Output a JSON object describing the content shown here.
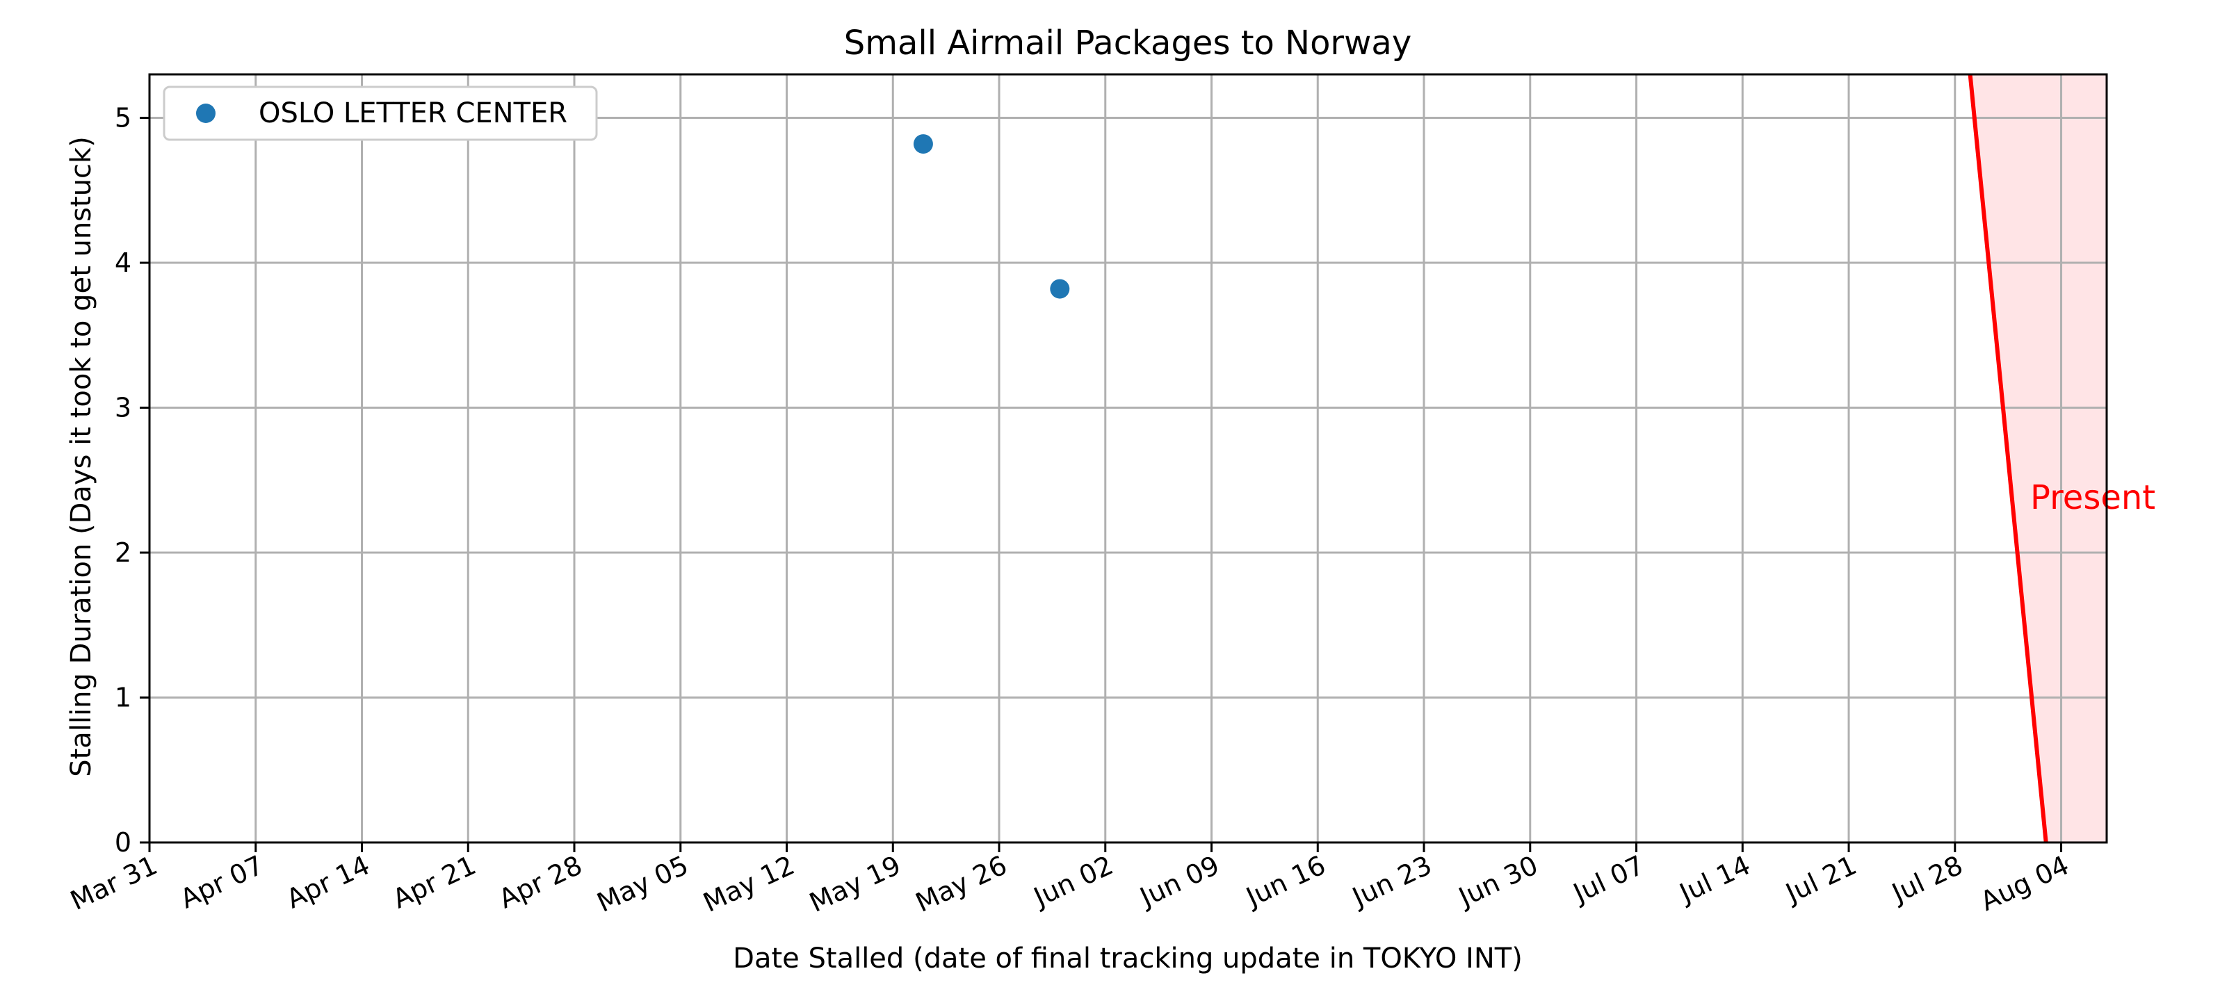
{
  "chart_data": {
    "type": "scatter",
    "title": "Small Airmail Packages to Norway",
    "xlabel": "Date Stalled (date of final tracking update in TOKYO INT)",
    "ylabel": "Stalling Duration (Days it took to get unstuck)",
    "xlim": [
      "2024-03-31",
      "2024-08-07"
    ],
    "ylim": [
      0,
      5.3
    ],
    "x_ticks": [
      "Mar 31",
      "Apr 07",
      "Apr 14",
      "Apr 21",
      "Apr 28",
      "May 05",
      "May 12",
      "May 19",
      "May 26",
      "Jun 02",
      "Jun 09",
      "Jun 16",
      "Jun 23",
      "Jun 30",
      "Jul 07",
      "Jul 14",
      "Jul 21",
      "Jul 28",
      "Aug 04"
    ],
    "y_ticks": [
      0,
      1,
      2,
      3,
      4,
      5
    ],
    "grid": true,
    "legend_position": "top-left",
    "series": [
      {
        "name": "OSLO LETTER CENTER",
        "color": "#1f77b4",
        "points": [
          {
            "x": "2024-05-21",
            "y": 4.82
          },
          {
            "x": "2024-05-30",
            "y": 3.82
          }
        ]
      }
    ],
    "present_marker": {
      "label": "Present",
      "color": "#ff0000",
      "fill_color": "#ffe4e6",
      "line_start": {
        "x": "2024-07-29",
        "y": 5.3
      },
      "line_end": {
        "x": "2024-08-03",
        "y": 0
      },
      "shade_to": "2024-08-07"
    }
  }
}
